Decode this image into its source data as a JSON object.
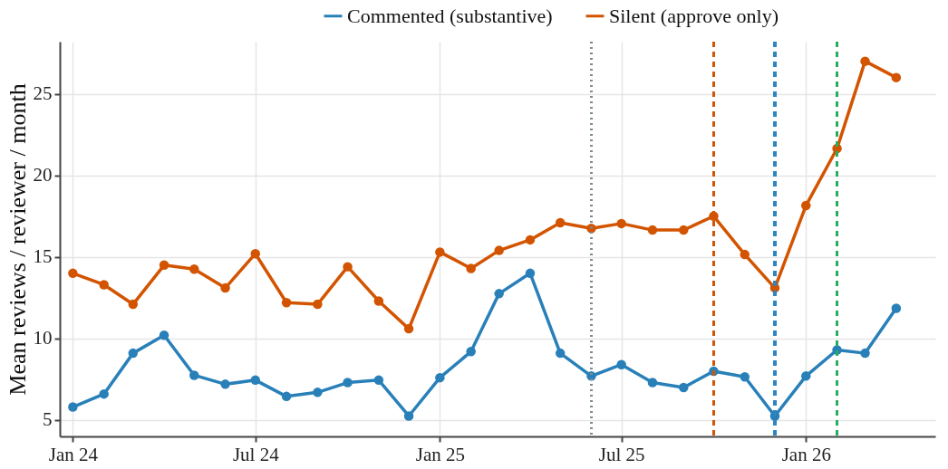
{
  "chart_data": {
    "type": "line",
    "ylabel": "Mean reviews / reviewer / month",
    "x": [
      "2024-01",
      "2024-02",
      "2024-03",
      "2024-04",
      "2024-05",
      "2024-06",
      "2024-07",
      "2024-08",
      "2024-09",
      "2024-10",
      "2024-11",
      "2024-12",
      "2025-01",
      "2025-02",
      "2025-03",
      "2025-04",
      "2025-05",
      "2025-06",
      "2025-07",
      "2025-08",
      "2025-09",
      "2025-10",
      "2025-11",
      "2025-12",
      "2026-01",
      "2026-02",
      "2026-03",
      "2026-04"
    ],
    "series": [
      {
        "name": "Commented (substantive)",
        "color": "#2980b9",
        "values": [
          5.8,
          6.6,
          9.1,
          10.2,
          7.75,
          7.2,
          7.45,
          6.45,
          6.7,
          7.3,
          7.45,
          5.25,
          7.6,
          9.2,
          12.75,
          14.0,
          9.1,
          7.7,
          8.4,
          7.3,
          7.0,
          8.0,
          7.65,
          5.25,
          7.7,
          9.3,
          9.1,
          11.85
        ]
      },
      {
        "name": "Silent (approve only)",
        "color": "#d35400",
        "values": [
          14.0,
          13.3,
          12.1,
          14.5,
          14.25,
          13.1,
          15.2,
          12.2,
          12.1,
          14.4,
          12.3,
          10.6,
          15.3,
          14.3,
          15.4,
          16.05,
          17.1,
          16.75,
          17.05,
          16.65,
          16.65,
          17.5,
          15.15,
          13.1,
          18.15,
          21.65,
          27.0,
          26.0
        ]
      }
    ],
    "xlim": [
      "2023-12-19",
      "2026-05-10"
    ],
    "xticks": [
      {
        "value": "2024-01",
        "label": "Jan 24"
      },
      {
        "value": "2024-07",
        "label": "Jul 24"
      },
      {
        "value": "2025-01",
        "label": "Jan 25"
      },
      {
        "value": "2025-07",
        "label": "Jul 25"
      },
      {
        "value": "2026-01",
        "label": "Jan 26"
      }
    ],
    "ylim": [
      4,
      28.2
    ],
    "yticks": [
      5,
      10,
      15,
      20,
      25
    ],
    "ref_lines": [
      {
        "axis": "x",
        "value": "2025-06",
        "color": "#7f8c8d",
        "line_style": "dotted"
      },
      {
        "axis": "x",
        "value": "2025-10",
        "color": "#d35400",
        "line_style": "dashed"
      },
      {
        "axis": "x",
        "value": "2025-12",
        "color": "#2e86c1",
        "line_style": "dashed"
      },
      {
        "axis": "x",
        "value": "2026-02",
        "color": "#27ae60",
        "line_style": "dashed"
      }
    ],
    "grid": true,
    "legend": "top",
    "marker": "circle",
    "line_style": "solid"
  }
}
